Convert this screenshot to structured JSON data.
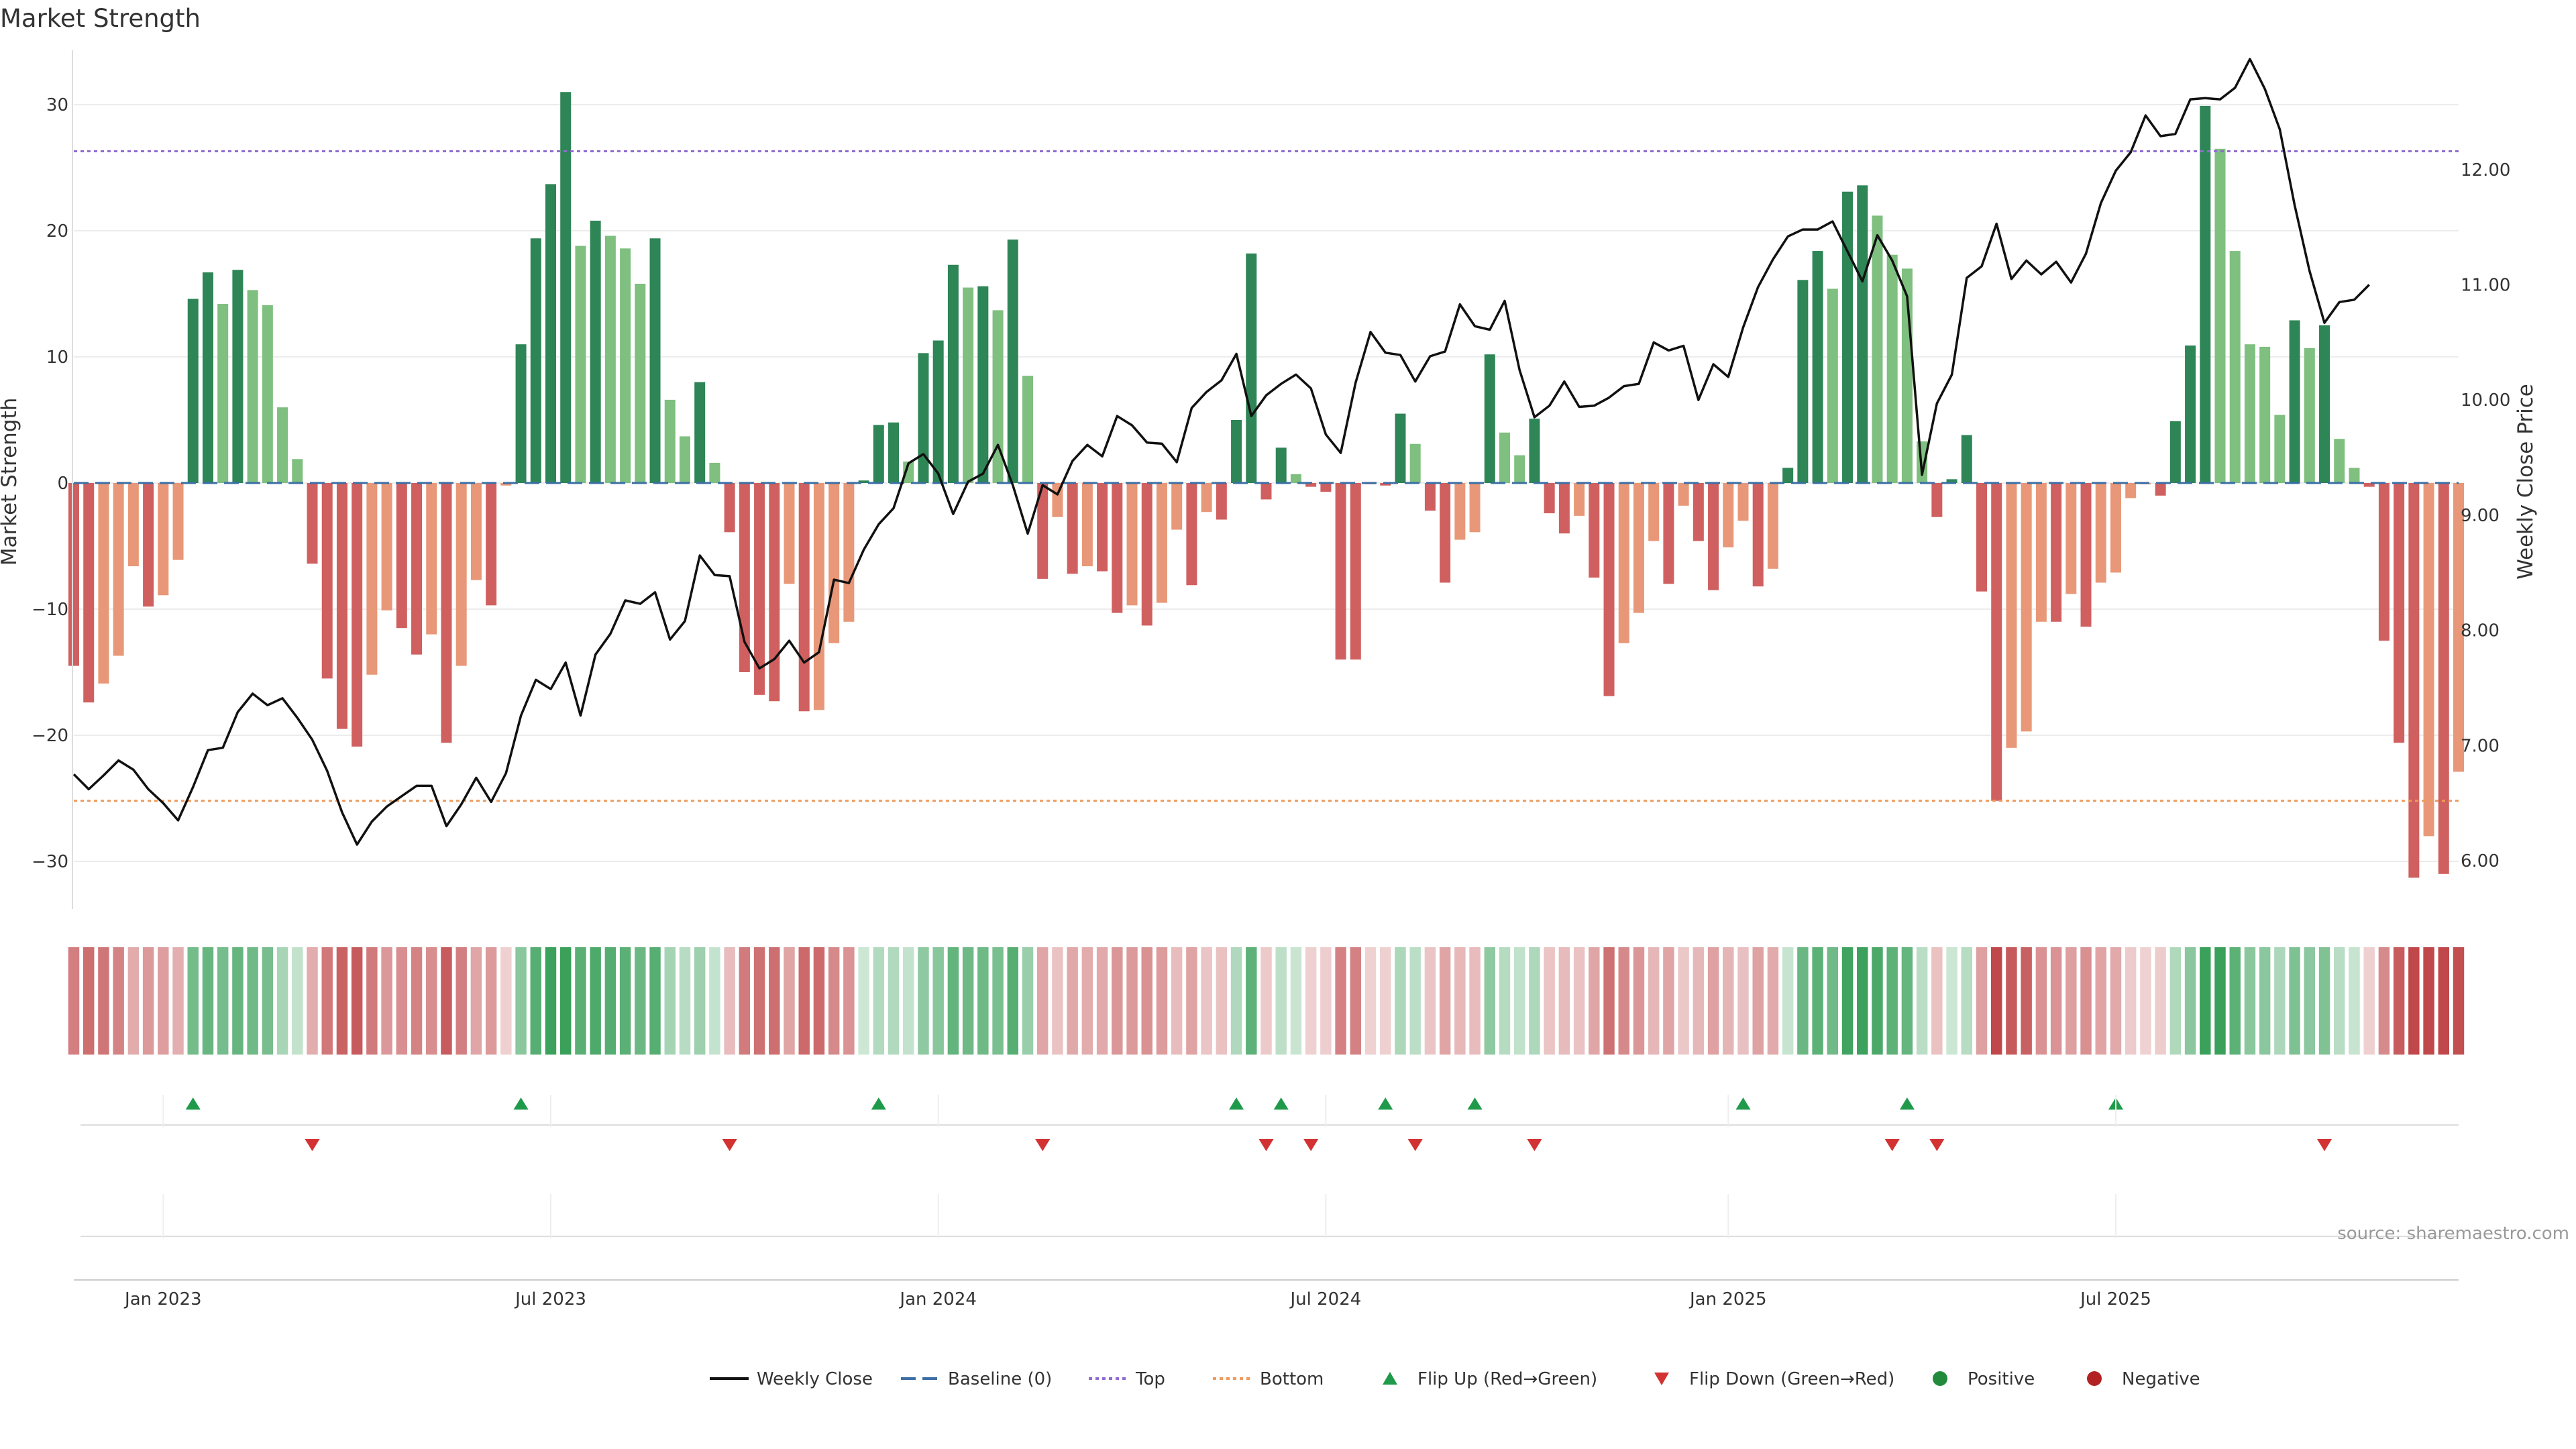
{
  "chart_data": {
    "type": "bar",
    "title": "Market Strength",
    "ylabel": "Market Strength",
    "y2label": "Weekly Close Price",
    "ylim": [
      -34,
      34
    ],
    "y2lim": [
      5.6,
      12.9
    ],
    "yticks": [
      "30",
      "20",
      "10",
      "0",
      "−10",
      "−20",
      "−30"
    ],
    "y2ticks": [
      "12.00",
      "11.00",
      "10.00",
      "9.00",
      "8.00",
      "7.00",
      "6.00"
    ],
    "top_level": 26.3,
    "bottom_level": -25.2,
    "x_start": "2022-11-21",
    "x_interval": "weekly",
    "xticks": [
      {
        "label": "Jan 2023",
        "date": "2023-01-02"
      },
      {
        "label": "Jul 2023",
        "date": "2023-07-03"
      },
      {
        "label": "Jan 2024",
        "date": "2024-01-01"
      },
      {
        "label": "Jul 2024",
        "date": "2024-07-01"
      },
      {
        "label": "Jan 2025",
        "date": "2025-01-06"
      },
      {
        "label": "Jul 2025",
        "date": "2025-07-07"
      }
    ],
    "strength": [
      -14.5,
      -17.4,
      -15.9,
      -13.7,
      -6.6,
      -9.8,
      -8.9,
      -6.1,
      14.6,
      16.7,
      14.2,
      16.9,
      15.3,
      14.1,
      6.0,
      1.9,
      -6.4,
      -15.5,
      -19.5,
      -20.9,
      -15.2,
      -10.1,
      -11.5,
      -13.6,
      -12.0,
      -20.6,
      -14.5,
      -7.7,
      -9.7,
      -0.2,
      11.0,
      19.4,
      23.7,
      31.0,
      18.8,
      20.8,
      19.6,
      18.6,
      15.8,
      19.4,
      6.6,
      3.7,
      8.0,
      1.6,
      -3.9,
      -15.0,
      -16.8,
      -17.3,
      -8.0,
      -18.1,
      -18.0,
      -12.7,
      -11.0,
      0.2,
      4.6,
      4.8,
      1.7,
      10.3,
      11.3,
      17.3,
      15.5,
      15.6,
      13.7,
      19.3,
      8.5,
      -7.6,
      -2.7,
      -7.2,
      -6.6,
      -7.0,
      -10.3,
      -9.7,
      -11.3,
      -9.5,
      -3.7,
      -8.1,
      -2.3,
      -2.9,
      5.0,
      18.2,
      -1.3,
      2.8,
      0.7,
      -0.3,
      -0.7,
      -14.0,
      -14.0,
      -0.1,
      -0.2,
      5.5,
      3.1,
      -2.2,
      -7.9,
      -4.5,
      -3.9,
      10.2,
      4.0,
      2.2,
      5.1,
      -2.4,
      -4.0,
      -2.6,
      -7.5,
      -16.9,
      -12.7,
      -10.3,
      -4.6,
      -8.0,
      -1.8,
      -4.6,
      -8.5,
      -5.1,
      -3.0,
      -8.2,
      -6.8,
      1.2,
      16.1,
      18.4,
      15.4,
      23.1,
      23.6,
      21.2,
      18.1,
      17.0,
      3.3,
      -2.7,
      0.3,
      3.8,
      -8.6,
      -25.2,
      -21.0,
      -19.7,
      -11.0,
      -11.0,
      -8.8,
      -11.4,
      -7.9,
      -7.1,
      -1.2,
      -0.1,
      -1.0,
      4.9,
      10.9,
      29.9,
      26.5,
      18.4,
      11.0,
      10.8,
      5.4,
      12.9,
      10.7,
      12.5,
      3.5,
      1.2,
      -0.3,
      -12.5,
      -20.6,
      -31.3,
      -28.0,
      -31.0,
      -22.9
    ],
    "close": [
      6.75,
      6.62,
      6.74,
      6.87,
      6.79,
      6.62,
      6.5,
      6.35,
      6.64,
      6.96,
      6.98,
      7.29,
      7.45,
      7.35,
      7.41,
      7.24,
      7.05,
      6.78,
      6.42,
      6.14,
      6.34,
      6.47,
      6.56,
      6.65,
      6.65,
      6.3,
      6.49,
      6.72,
      6.51,
      6.76,
      7.26,
      7.57,
      7.49,
      7.72,
      7.26,
      7.79,
      7.97,
      8.26,
      8.23,
      8.33,
      7.92,
      8.08,
      8.65,
      8.48,
      8.47,
      7.9,
      7.67,
      7.75,
      7.91,
      7.72,
      7.81,
      8.44,
      8.41,
      8.7,
      8.92,
      9.06,
      9.45,
      9.53,
      9.36,
      9.01,
      9.29,
      9.36,
      9.61,
      9.26,
      8.84,
      9.26,
      9.18,
      9.47,
      9.61,
      9.51,
      9.86,
      9.78,
      9.63,
      9.62,
      9.46,
      9.93,
      10.07,
      10.17,
      10.4,
      9.86,
      10.04,
      10.14,
      10.22,
      10.1,
      9.7,
      9.54,
      10.15,
      10.59,
      10.41,
      10.39,
      10.16,
      10.38,
      10.42,
      10.83,
      10.64,
      10.61,
      10.86,
      10.26,
      9.85,
      9.95,
      10.16,
      9.94,
      9.95,
      10.02,
      10.12,
      10.14,
      10.5,
      10.43,
      10.47,
      10.0,
      10.31,
      10.2,
      10.63,
      10.98,
      11.22,
      11.42,
      11.48,
      11.48,
      11.55,
      11.29,
      11.03,
      11.43,
      11.21,
      10.9,
      9.35,
      9.97,
      10.22,
      11.06,
      11.16,
      11.53,
      11.05,
      11.21,
      11.09,
      11.2,
      11.02,
      11.27,
      11.71,
      11.99,
      12.15,
      12.47,
      12.29,
      12.31,
      12.61,
      12.62,
      12.61,
      12.71,
      12.96,
      12.7,
      12.35,
      11.69,
      11.12,
      10.67,
      10.85,
      10.87,
      11.0
    ]
  },
  "bands": {
    "flip_up_weeks": [
      8,
      30,
      54,
      78,
      81,
      88,
      94,
      112,
      123,
      137
    ],
    "flip_down_weeks": [
      16,
      44,
      65,
      80,
      83,
      90,
      98,
      122,
      125,
      151
    ]
  },
  "legend": [
    {
      "label": "Weekly Close",
      "symbol": "line",
      "color": "#111111"
    },
    {
      "label": "Baseline (0)",
      "symbol": "dash",
      "color": "#3b6ea5"
    },
    {
      "label": "Top",
      "symbol": "dot",
      "color": "#8f6bd0"
    },
    {
      "label": "Bottom",
      "symbol": "dot",
      "color": "#ee9a5e"
    },
    {
      "label": "Flip Up (Red→Green)",
      "symbol": "tri-up",
      "color": "#1f9a4a"
    },
    {
      "label": "Flip Down (Green→Red)",
      "symbol": "tri-down",
      "color": "#d23232"
    },
    {
      "label": "Positive",
      "symbol": "circle",
      "color": "#228b3b"
    },
    {
      "label": "Negative",
      "symbol": "circle",
      "color": "#b22222"
    }
  ],
  "source": "source: sharemaestro.com",
  "colors": {
    "pos_strong": "#2e8556",
    "pos_light": "#7fbf7f",
    "neg_strong": "#d06060",
    "neg_light": "#e89878",
    "baseline": "#3b6ea5",
    "top": "#8f6bd0",
    "bottom": "#ee9a5e",
    "line": "#111111"
  }
}
